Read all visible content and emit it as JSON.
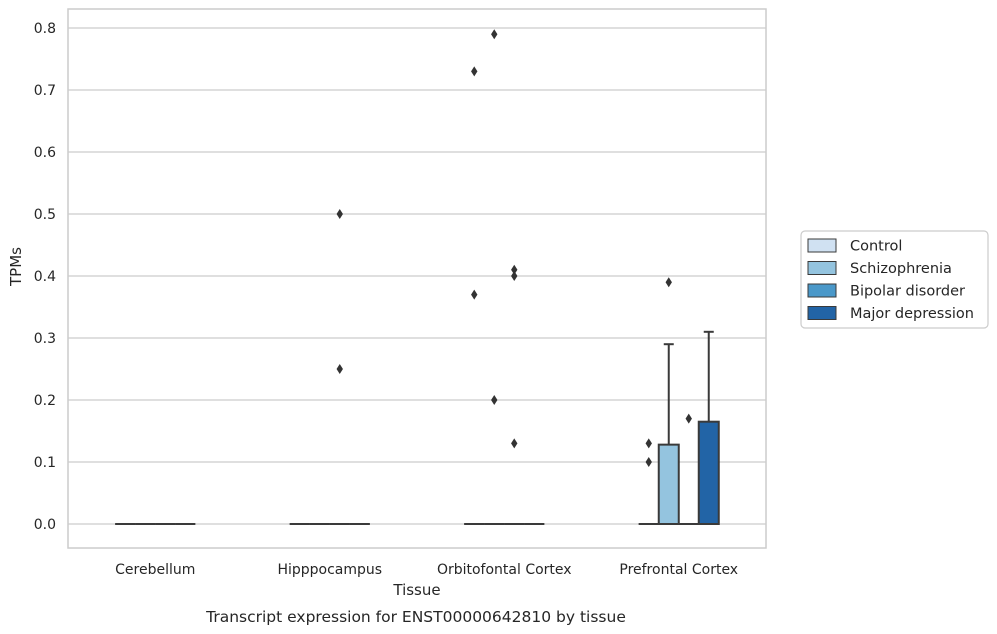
{
  "caption": "Transcript expression for ENST00000642810 by tissue",
  "chart_data": {
    "type": "box",
    "title": "",
    "xlabel": "Tissue",
    "ylabel": "TPMs",
    "ylim": [
      -0.04,
      0.83
    ],
    "yticks": [
      "0.0",
      "0.1",
      "0.2",
      "0.3",
      "0.4",
      "0.5",
      "0.6",
      "0.7",
      "0.8"
    ],
    "grid": "horizontal",
    "legend_position": "right",
    "categories": [
      "Cerebellum",
      "Hipppocampus",
      "Orbitofontal Cortex",
      "Prefrontal Cortex"
    ],
    "series": [
      {
        "name": "Control",
        "color": "#d0e1f2",
        "boxes": [
          {
            "q1": 0,
            "median": 0,
            "q3": 0,
            "whisker_low": 0,
            "whisker_high": 0,
            "outliers": []
          },
          {
            "q1": 0,
            "median": 0,
            "q3": 0,
            "whisker_low": 0,
            "whisker_high": 0,
            "outliers": []
          },
          {
            "q1": 0,
            "median": 0,
            "q3": 0,
            "whisker_low": 0,
            "whisker_high": 0,
            "outliers": [
              0.73,
              0.37
            ]
          },
          {
            "q1": 0,
            "median": 0,
            "q3": 0,
            "whisker_low": 0,
            "whisker_high": 0,
            "outliers": [
              0.13,
              0.1
            ]
          }
        ]
      },
      {
        "name": "Schizophrenia",
        "color": "#94c4df",
        "boxes": [
          {
            "q1": 0,
            "median": 0,
            "q3": 0,
            "whisker_low": 0,
            "whisker_high": 0,
            "outliers": []
          },
          {
            "q1": 0,
            "median": 0,
            "q3": 0,
            "whisker_low": 0,
            "whisker_high": 0,
            "outliers": []
          },
          {
            "q1": 0,
            "median": 0,
            "q3": 0,
            "whisker_low": 0,
            "whisker_high": 0,
            "outliers": [
              0.79,
              0.2
            ]
          },
          {
            "q1": 0,
            "median": 0,
            "q3": 0.128,
            "whisker_low": 0,
            "whisker_high": 0.29,
            "outliers": [
              0.39
            ]
          }
        ]
      },
      {
        "name": "Bipolar disorder",
        "color": "#4a98c9",
        "boxes": [
          {
            "q1": 0,
            "median": 0,
            "q3": 0,
            "whisker_low": 0,
            "whisker_high": 0,
            "outliers": []
          },
          {
            "q1": 0,
            "median": 0,
            "q3": 0,
            "whisker_low": 0,
            "whisker_high": 0,
            "outliers": [
              0.5,
              0.25
            ]
          },
          {
            "q1": 0,
            "median": 0,
            "q3": 0,
            "whisker_low": 0,
            "whisker_high": 0,
            "outliers": [
              0.41,
              0.4,
              0.13
            ]
          },
          {
            "q1": 0,
            "median": 0,
            "q3": 0,
            "whisker_low": 0,
            "whisker_high": 0,
            "outliers": [
              0.17
            ]
          }
        ]
      },
      {
        "name": "Major depression",
        "color": "#2264a6",
        "boxes": [
          {
            "q1": 0,
            "median": 0,
            "q3": 0,
            "whisker_low": 0,
            "whisker_high": 0,
            "outliers": []
          },
          {
            "q1": 0,
            "median": 0,
            "q3": 0,
            "whisker_low": 0,
            "whisker_high": 0,
            "outliers": []
          },
          {
            "q1": 0,
            "median": 0,
            "q3": 0,
            "whisker_low": 0,
            "whisker_high": 0,
            "outliers": []
          },
          {
            "q1": 0,
            "median": 0,
            "q3": 0.165,
            "whisker_low": 0,
            "whisker_high": 0.31,
            "outliers": []
          }
        ]
      }
    ]
  }
}
